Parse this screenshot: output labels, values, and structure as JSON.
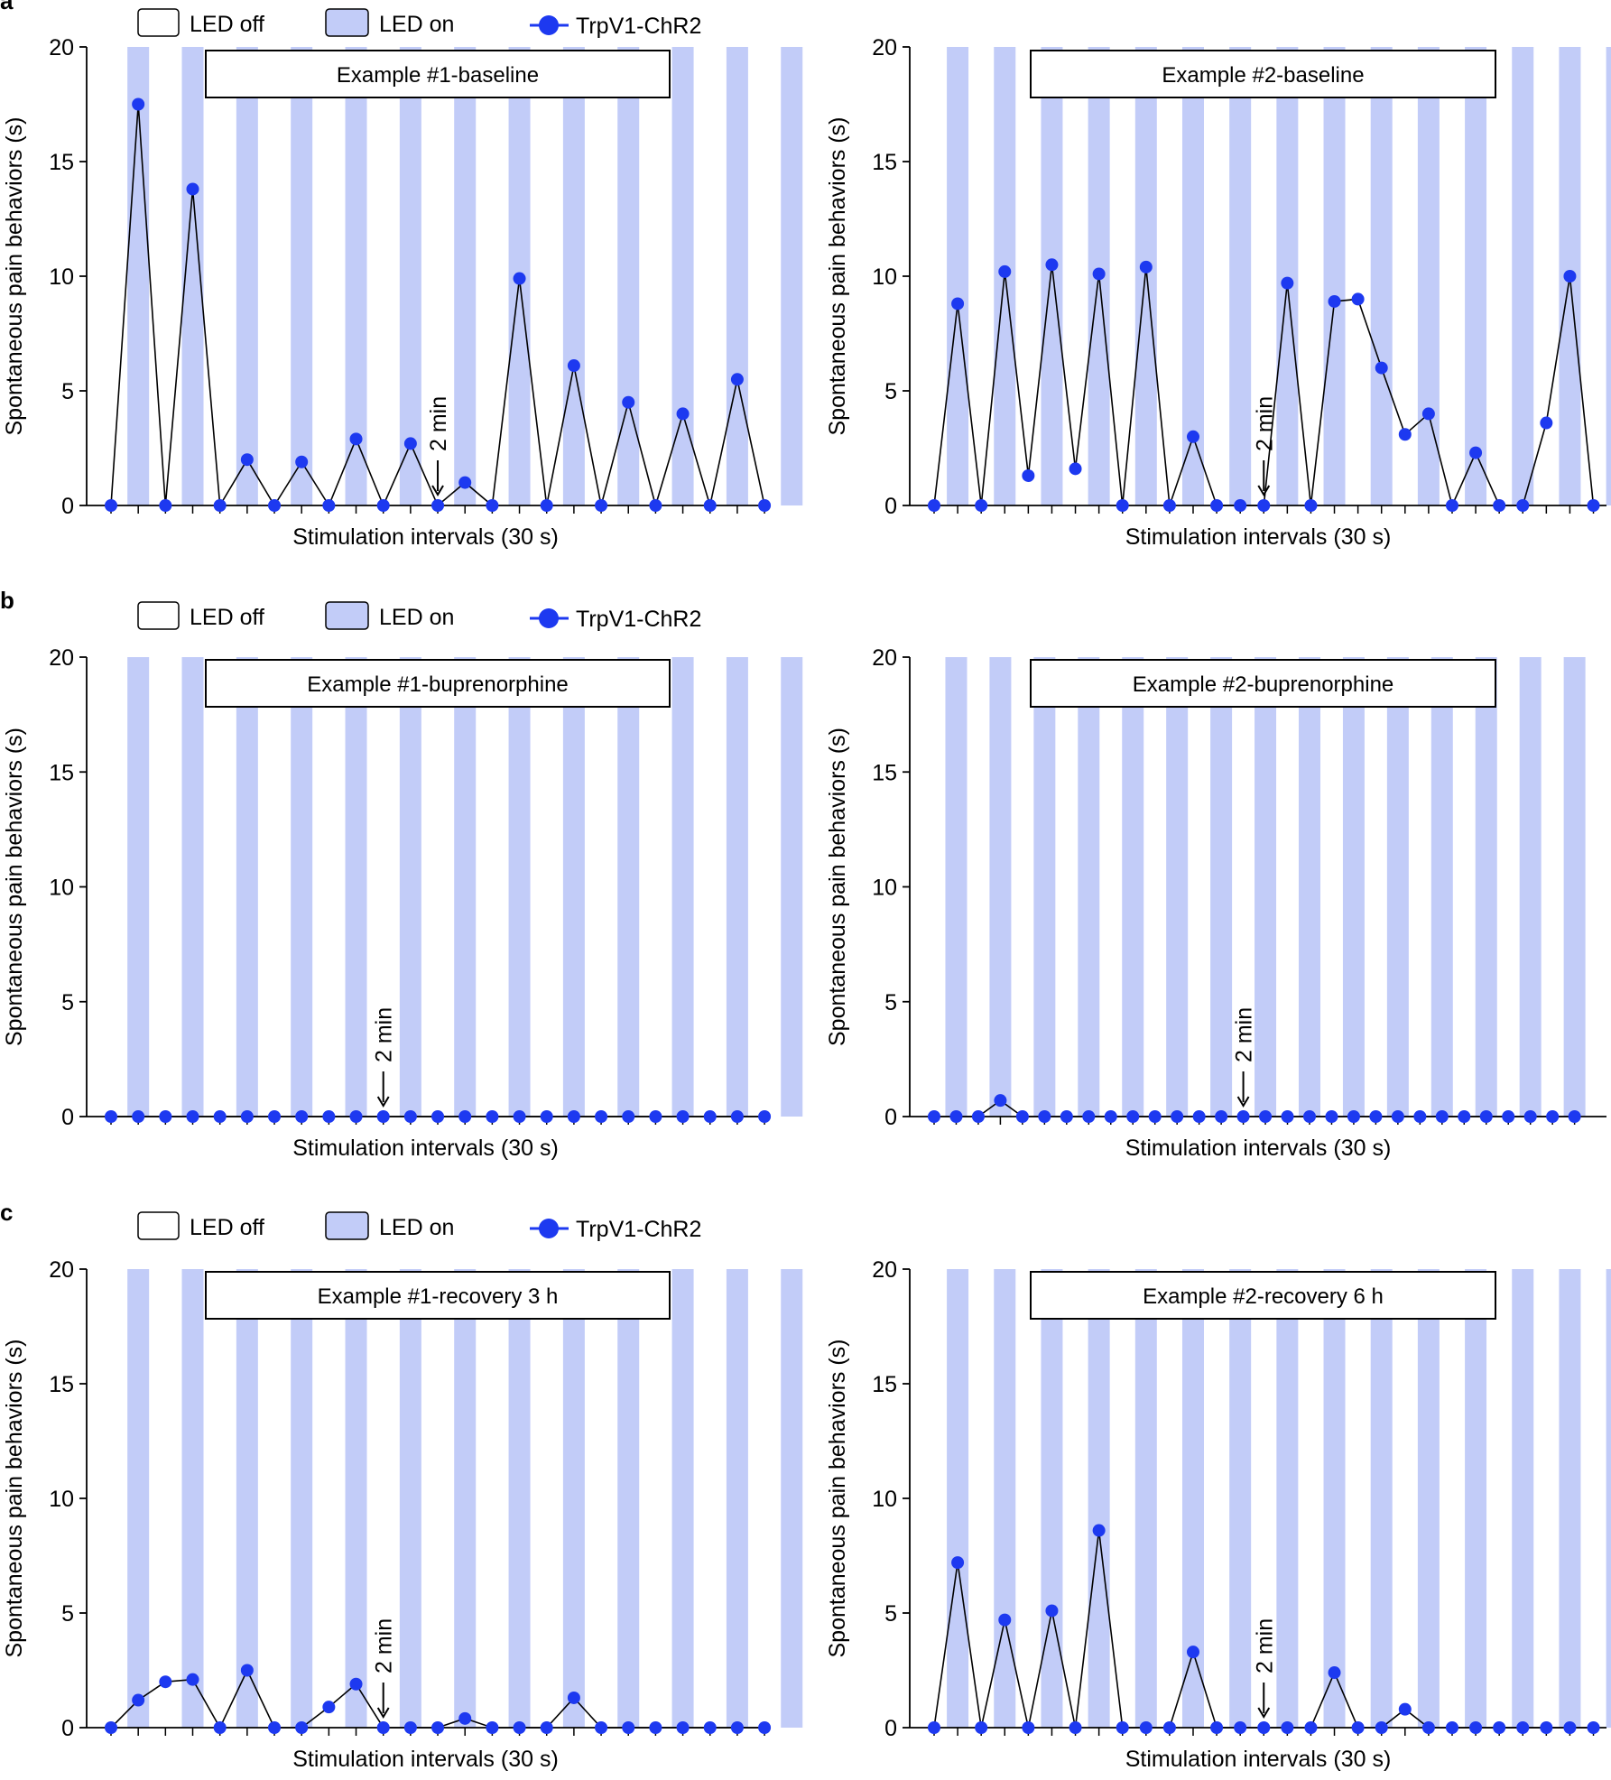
{
  "colors": {
    "led_on": "#c2ccf8",
    "marker": "#1d39f0",
    "line": "#000000",
    "axis": "#000000"
  },
  "panels": [
    {
      "letter": "a",
      "legend": {
        "off": "LED off",
        "on": "LED on",
        "series": "TrpV1-ChR2"
      }
    },
    {
      "letter": "b",
      "legend": {
        "off": "LED off",
        "on": "LED on",
        "series": "TrpV1-ChR2"
      }
    },
    {
      "letter": "c",
      "legend": {
        "off": "LED off",
        "on": "LED on",
        "series": "TrpV1-ChR2"
      }
    }
  ],
  "chart_data": [
    {
      "type": "line",
      "panel": "a",
      "title": "Example #1-baseline",
      "xlabel": "Stimulation intervals (30 s)",
      "ylabel": "Spontaneous pain behaviors (s)",
      "ylim": [
        0,
        20
      ],
      "yticks": [
        "0",
        "5",
        "10",
        "15",
        "20"
      ],
      "annotation": "2 min",
      "annotation_index": 12,
      "led_on_intervals": [
        1,
        3,
        5,
        7,
        9,
        11,
        13,
        15,
        17,
        19,
        21,
        23,
        25
      ],
      "series": [
        {
          "name": "TrpV1-ChR2",
          "values": [
            0,
            17.5,
            0,
            13.8,
            0,
            2.0,
            0,
            1.9,
            0,
            2.9,
            0,
            2.7,
            0,
            1.0,
            0,
            9.9,
            0,
            6.1,
            0,
            4.5,
            0,
            4.0,
            0,
            5.5,
            0
          ]
        }
      ]
    },
    {
      "type": "line",
      "panel": "a",
      "title": "Example #2-baseline",
      "xlabel": "Stimulation intervals (30 s)",
      "ylabel": "Spontaneous pain behaviors (s)",
      "ylim": [
        0,
        20
      ],
      "yticks": [
        "0",
        "5",
        "10",
        "15",
        "20"
      ],
      "annotation": "2 min",
      "annotation_index": 14,
      "led_on_intervals": [
        1,
        3,
        5,
        7,
        9,
        11,
        13,
        15,
        17,
        19,
        21,
        23,
        25,
        27,
        29
      ],
      "series": [
        {
          "name": "TrpV1-ChR2",
          "values": [
            0,
            8.8,
            0,
            10.2,
            1.3,
            10.5,
            1.6,
            10.1,
            0,
            10.4,
            0,
            3.0,
            0,
            0,
            0,
            9.7,
            0,
            8.9,
            9.0,
            6.0,
            3.1,
            4.0,
            0,
            2.3,
            0,
            0,
            3.6,
            10.0,
            0
          ]
        }
      ]
    },
    {
      "type": "line",
      "panel": "b",
      "title": "Example #1-buprenorphine",
      "xlabel": "Stimulation intervals (30 s)",
      "ylabel": "Spontaneous pain behaviors (s)",
      "ylim": [
        0,
        20
      ],
      "yticks": [
        "0",
        "5",
        "10",
        "15",
        "20"
      ],
      "annotation": "2 min",
      "annotation_index": 10,
      "led_on_intervals": [
        1,
        3,
        5,
        7,
        9,
        11,
        13,
        15,
        17,
        19,
        21,
        23,
        25
      ],
      "series": [
        {
          "name": "TrpV1-ChR2",
          "values": [
            0,
            0,
            0,
            0,
            0,
            0,
            0,
            0,
            0,
            0,
            0,
            0,
            0,
            0,
            0,
            0,
            0,
            0,
            0,
            0,
            0,
            0,
            0,
            0,
            0
          ]
        }
      ]
    },
    {
      "type": "line",
      "panel": "b",
      "title": "Example #2-buprenorphine",
      "xlabel": "Stimulation intervals (30 s)",
      "ylabel": "Spontaneous pain behaviors (s)",
      "ylim": [
        0,
        20
      ],
      "yticks": [
        "0",
        "5",
        "10",
        "15",
        "20"
      ],
      "annotation": "2 min",
      "annotation_index": 14,
      "led_on_intervals": [
        1,
        3,
        5,
        7,
        9,
        11,
        13,
        15,
        17,
        19,
        21,
        23,
        25,
        27,
        29
      ],
      "series": [
        {
          "name": "TrpV1-ChR2",
          "values": [
            0,
            0,
            0,
            0.7,
            0,
            0,
            0,
            0,
            0,
            0,
            0,
            0,
            0,
            0,
            0,
            0,
            0,
            0,
            0,
            0,
            0,
            0,
            0,
            0,
            0,
            0,
            0,
            0,
            0,
            0
          ]
        }
      ]
    },
    {
      "type": "line",
      "panel": "c",
      "title": "Example #1-recovery 3 h",
      "xlabel": "Stimulation intervals (30 s)",
      "ylabel": "Spontaneous pain behaviors (s)",
      "ylim": [
        0,
        20
      ],
      "yticks": [
        "0",
        "5",
        "10",
        "15",
        "20"
      ],
      "annotation": "2 min",
      "annotation_index": 10,
      "led_on_intervals": [
        1,
        3,
        5,
        7,
        9,
        11,
        13,
        15,
        17,
        19,
        21,
        23,
        25
      ],
      "series": [
        {
          "name": "TrpV1-ChR2",
          "values": [
            0,
            1.2,
            2.0,
            2.1,
            0,
            2.5,
            0,
            0,
            0.9,
            1.9,
            0,
            0,
            0,
            0.4,
            0,
            0,
            0,
            1.3,
            0,
            0,
            0,
            0,
            0,
            0,
            0
          ]
        }
      ]
    },
    {
      "type": "line",
      "panel": "c",
      "title": "Example #2-recovery 6 h",
      "xlabel": "Stimulation intervals (30 s)",
      "ylabel": "Spontaneous pain behaviors (s)",
      "ylim": [
        0,
        20
      ],
      "yticks": [
        "0",
        "5",
        "10",
        "15",
        "20"
      ],
      "annotation": "2 min",
      "annotation_index": 14,
      "led_on_intervals": [
        1,
        3,
        5,
        7,
        9,
        11,
        13,
        15,
        17,
        19,
        21,
        23,
        25,
        27,
        29
      ],
      "series": [
        {
          "name": "TrpV1-ChR2",
          "values": [
            0,
            7.2,
            0,
            4.7,
            0,
            5.1,
            0,
            8.6,
            0,
            0,
            0,
            3.3,
            0,
            0,
            0,
            0,
            0,
            2.4,
            0,
            0,
            0.8,
            0,
            0,
            0,
            0,
            0,
            0,
            0,
            0
          ]
        }
      ]
    }
  ]
}
